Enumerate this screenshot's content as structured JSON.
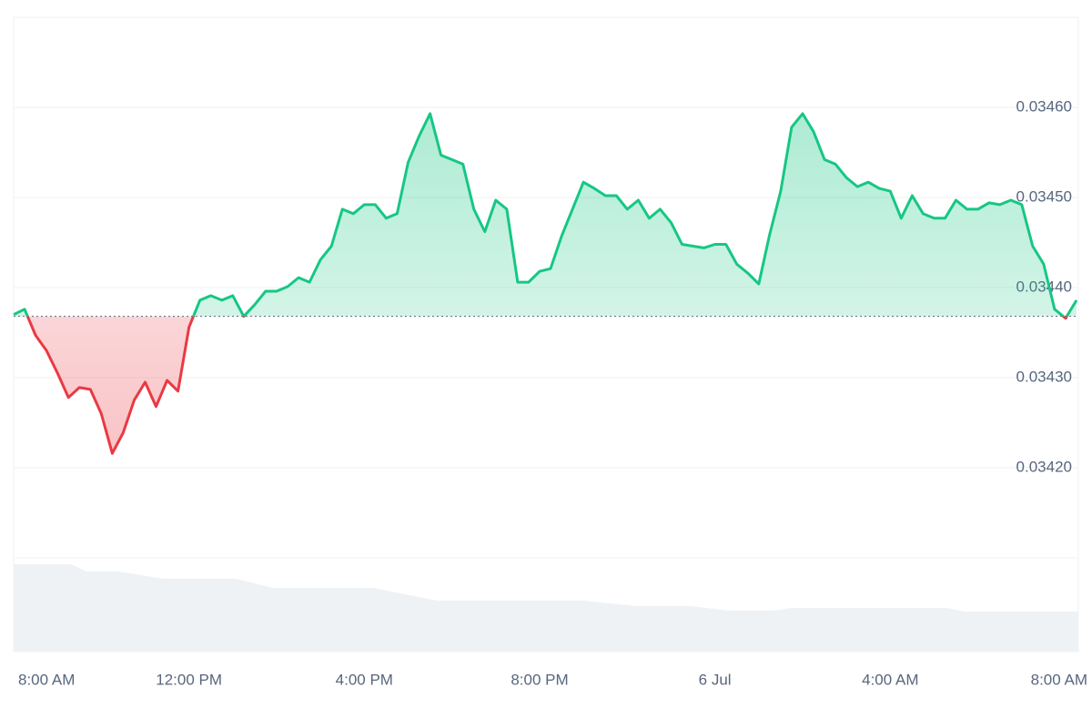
{
  "chart_data": {
    "type": "line",
    "x": [
      8,
      8.25,
      8.5,
      8.75,
      9,
      9.25,
      9.5,
      9.75,
      10,
      10.25,
      10.5,
      10.75,
      11,
      11.25,
      11.5,
      11.75,
      12,
      12.25,
      12.5,
      12.75,
      13,
      13.25,
      13.5,
      13.75,
      14,
      14.25,
      14.5,
      14.75,
      15,
      15.25,
      15.5,
      15.75,
      16,
      16.25,
      16.5,
      16.75,
      17,
      17.25,
      17.5,
      17.75,
      18,
      18.25,
      18.5,
      18.75,
      19,
      19.25,
      19.5,
      19.75,
      20,
      20.25,
      20.5,
      20.75,
      21,
      21.25,
      21.5,
      21.75,
      22,
      22.25,
      22.5,
      22.75,
      23,
      23.25,
      23.5,
      23.75,
      24,
      24.25,
      24.5,
      24.75,
      25,
      25.25,
      25.5,
      25.75,
      26,
      26.25,
      26.5,
      26.75,
      27,
      27.25,
      27.5,
      27.75,
      28,
      28.25,
      28.5,
      28.75,
      29,
      29.25,
      29.5,
      29.75,
      30,
      30.25,
      30.5,
      30.75,
      31,
      31.25,
      31.5,
      31.75,
      32,
      32.25
    ],
    "series": [
      {
        "color": "#16c784",
        "below_color": "#ea3943",
        "values": [
          0.03437,
          0.034376,
          0.034347,
          0.03433,
          0.034305,
          0.034278,
          0.034289,
          0.034287,
          0.03426,
          0.034216,
          0.034239,
          0.034275,
          0.034295,
          0.034268,
          0.034297,
          0.034285,
          0.034356,
          0.034386,
          0.034391,
          0.034386,
          0.034391,
          0.034368,
          0.034381,
          0.034396,
          0.034396,
          0.034401,
          0.034411,
          0.034406,
          0.034431,
          0.034446,
          0.034487,
          0.034482,
          0.034492,
          0.034492,
          0.034477,
          0.034482,
          0.034539,
          0.034568,
          0.034593,
          0.034547,
          0.034542,
          0.034537,
          0.034487,
          0.034462,
          0.034497,
          0.034487,
          0.034406,
          0.034406,
          0.034418,
          0.034421,
          0.034457,
          0.034487,
          0.034517,
          0.03451,
          0.034502,
          0.034502,
          0.034487,
          0.034497,
          0.034477,
          0.034487,
          0.034472,
          0.034448,
          0.034446,
          0.034444,
          0.034448,
          0.034448,
          0.034426,
          0.034416,
          0.034404,
          0.034459,
          0.034507,
          0.034578,
          0.034593,
          0.034573,
          0.034542,
          0.034537,
          0.034522,
          0.034512,
          0.034517,
          0.03451,
          0.034507,
          0.034477,
          0.034502,
          0.034482,
          0.034477,
          0.034477,
          0.034497,
          0.034487,
          0.034487,
          0.034494,
          0.034492,
          0.034497,
          0.034492,
          0.034446,
          0.034426,
          0.034376,
          0.034366,
          0.034386
        ]
      }
    ],
    "reference_line": 0.034368,
    "xlim": [
      8,
      32.25
    ],
    "ylim": [
      0.0341,
      0.0347
    ],
    "xticks": [
      {
        "value": 8,
        "label": "8:00 AM"
      },
      {
        "value": 12,
        "label": "12:00 PM"
      },
      {
        "value": 16,
        "label": "4:00 PM"
      },
      {
        "value": 20,
        "label": "8:00 PM"
      },
      {
        "value": 24,
        "label": "6 Jul"
      },
      {
        "value": 28,
        "label": "4:00 AM"
      },
      {
        "value": 32,
        "label": "8:00 AM"
      }
    ],
    "yticks": [
      {
        "value": 0.0342,
        "label": "0.03420"
      },
      {
        "value": 0.0343,
        "label": "0.03430"
      },
      {
        "value": 0.0344,
        "label": "0.03440"
      },
      {
        "value": 0.0345,
        "label": "0.03450"
      },
      {
        "value": 0.0346,
        "label": "0.03460"
      }
    ],
    "grid": true
  }
}
